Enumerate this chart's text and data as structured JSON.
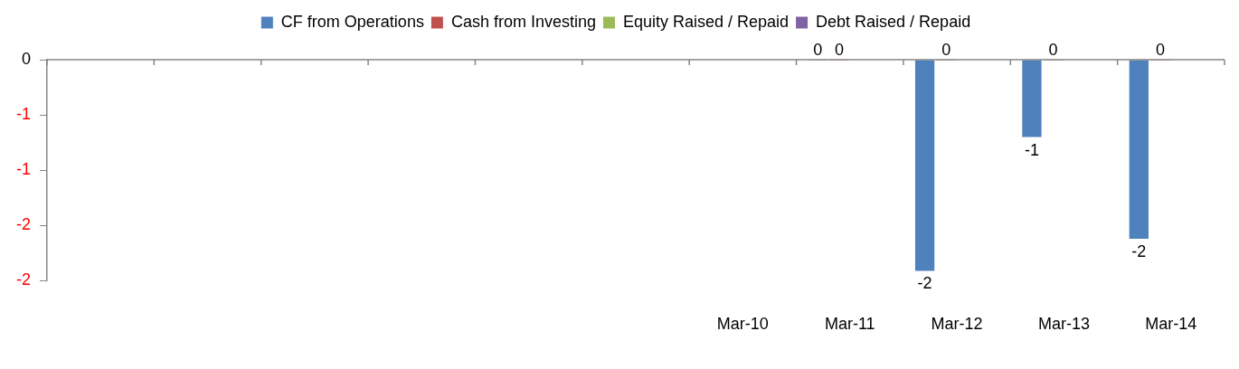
{
  "chart_data": {
    "type": "bar",
    "categories": [
      null,
      null,
      null,
      null,
      null,
      null,
      "Mar-10",
      "Mar-11",
      "Mar-12",
      "Mar-13",
      "Mar-14"
    ],
    "series": [
      {
        "name": "CF from Operations",
        "color": "#4f81bd",
        "values": [
          null,
          null,
          null,
          null,
          null,
          null,
          null,
          0,
          -1.91,
          -0.7,
          -1.62
        ],
        "value_labels": [
          null,
          null,
          null,
          null,
          null,
          null,
          null,
          "0",
          "-2",
          "-1",
          "-2"
        ]
      },
      {
        "name": "Cash from Investing",
        "color": "#c0504d",
        "values": [
          null,
          null,
          null,
          null,
          null,
          null,
          null,
          0,
          0,
          0,
          0
        ],
        "value_labels": [
          null,
          null,
          null,
          null,
          null,
          null,
          null,
          "0",
          "0",
          "0",
          "0"
        ]
      },
      {
        "name": "Equity Raised / Repaid",
        "color": "#9bbb59",
        "values": [
          null,
          null,
          null,
          null,
          null,
          null,
          null,
          null,
          null,
          null,
          null
        ]
      },
      {
        "name": "Debt Raised / Repaid",
        "color": "#8064a2",
        "values": [
          null,
          null,
          null,
          null,
          null,
          null,
          null,
          null,
          null,
          null,
          null
        ]
      }
    ],
    "ylim": [
      -2,
      0
    ],
    "yticks": [
      0,
      {
        "value": -0.5,
        "label": "-1"
      },
      -1,
      {
        "value": -1.5,
        "label": "-2"
      },
      -2
    ],
    "grid": false,
    "legend": "top"
  }
}
